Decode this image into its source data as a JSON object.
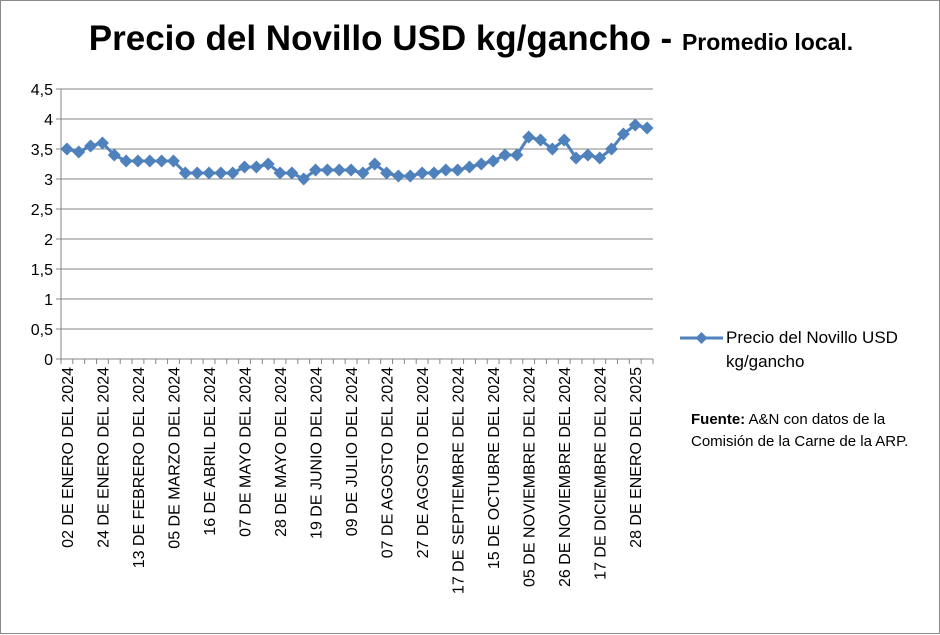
{
  "title": {
    "main": "Precio del Novillo USD kg/gancho - ",
    "sub": "Promedio local."
  },
  "legend": {
    "label": "Precio del Novillo USD kg/gancho"
  },
  "source": {
    "label": "Fuente:",
    "text": " A&N con datos de la Comisión de la Carne de la ARP."
  },
  "colors": {
    "series": "#4F81BD",
    "grid": "#868686"
  },
  "chart_data": {
    "type": "line",
    "title": "Precio del Novillo USD kg/gancho - Promedio local.",
    "ylim": [
      0,
      4.5
    ],
    "yticks": [
      "0",
      "0,5",
      "1",
      "1,5",
      "2",
      "2,5",
      "3",
      "3,5",
      "4",
      "4,5"
    ],
    "grid": true,
    "legend_position": "right",
    "x_tick_labels": [
      "02 DE ENERO DEL 2024",
      "24 DE ENERO  DEL 2024",
      "13 DE FEBRERO  DEL 2024",
      "05 DE MARZO  DEL 2024",
      "16 DE ABRIL  DEL 2024",
      "07 DE MAYO  DEL 2024",
      "28 DE MAYO  DEL 2024",
      "19 DE JUNIO  DEL 2024",
      "09 DE JULIO  DEL 2024",
      "07 DE AGOSTO DEL 2024",
      "27 DE AGOSTO  DEL 2024",
      "17 DE SEPTIEMBRE DEL 2024",
      "15 DE OCTUBRE DEL 2024",
      "05 DE NOVIEMBRE  DEL 2024",
      "26 DE NOVIEMBRE DEL 2024",
      "17 DE DICIEMBRE DEL 2024",
      "28 DE ENERO DEL 2025"
    ],
    "series": [
      {
        "name": "Precio del Novillo USD kg/gancho",
        "values": [
          3.5,
          3.45,
          3.55,
          3.6,
          3.4,
          3.3,
          3.3,
          3.3,
          3.3,
          3.3,
          3.1,
          3.1,
          3.1,
          3.1,
          3.1,
          3.2,
          3.2,
          3.25,
          3.1,
          3.1,
          3.0,
          3.15,
          3.15,
          3.15,
          3.15,
          3.1,
          3.25,
          3.1,
          3.05,
          3.05,
          3.1,
          3.1,
          3.15,
          3.15,
          3.2,
          3.25,
          3.3,
          3.4,
          3.4,
          3.7,
          3.65,
          3.5,
          3.65,
          3.35,
          3.4,
          3.35,
          3.5,
          3.75,
          3.9,
          3.85
        ]
      }
    ]
  }
}
